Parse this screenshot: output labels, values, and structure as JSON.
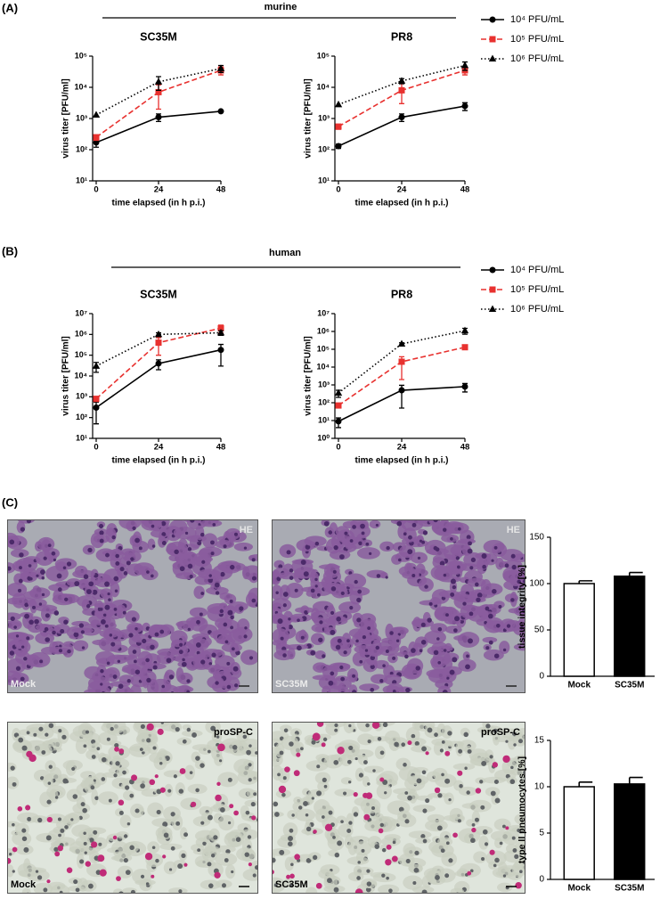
{
  "panels": [
    "(A)",
    "(B)",
    "(C)"
  ],
  "groups": [
    "murine",
    "human"
  ],
  "micrographs": [
    {
      "stain": "HE",
      "condition": "Mock"
    },
    {
      "stain": "HE",
      "condition": "SC35M"
    },
    {
      "stain": "proSP-C",
      "condition": "Mock"
    },
    {
      "stain": "proSP-C",
      "condition": "SC35M"
    }
  ],
  "chart_data": [
    {
      "type": "line",
      "title": "SC35M",
      "x_label": "time elapsed (in h p.i.)",
      "y_label": "virus titer [PFU/ml]",
      "x": [
        0,
        24,
        48
      ],
      "xlim": [
        0,
        48
      ],
      "xticks": [
        0,
        24,
        48
      ],
      "log_y": true,
      "ylim": [
        10,
        100000
      ],
      "yticks": [
        {
          "value": 10,
          "label": "10¹"
        },
        {
          "value": 100,
          "label": "10²"
        },
        {
          "value": 1000,
          "label": "10³"
        },
        {
          "value": 10000,
          "label": "10⁴"
        },
        {
          "value": 100000,
          "label": "10⁵"
        }
      ],
      "series": [
        {
          "name": "10⁴ PFU/mL",
          "color": "#000000",
          "dash": "solid",
          "marker": "circle",
          "values": [
            170,
            1100,
            1700
          ],
          "errors": [
            50,
            300,
            0
          ]
        },
        {
          "name": "10⁵ PFU/mL",
          "color": "#e8312f",
          "dash": "dashed",
          "marker": "square",
          "values": [
            250,
            7000,
            35000
          ],
          "errors": [
            50,
            5000,
            10000
          ]
        },
        {
          "name": "10⁶ PFU/mL",
          "color": "#000000",
          "dash": "dotted",
          "marker": "triangle",
          "values": [
            1300,
            15000,
            40000
          ],
          "errors": [
            0,
            7000,
            10000
          ]
        }
      ]
    },
    {
      "type": "line",
      "title": "PR8",
      "x_label": "time elapsed (in h p.i.)",
      "y_label": "virus titer [PFU/ml]",
      "x": [
        0,
        24,
        48
      ],
      "xlim": [
        0,
        48
      ],
      "xticks": [
        0,
        24,
        48
      ],
      "log_y": true,
      "ylim": [
        10,
        100000
      ],
      "yticks": [
        {
          "value": 10,
          "label": "10¹"
        },
        {
          "value": 100,
          "label": "10²"
        },
        {
          "value": 1000,
          "label": "10³"
        },
        {
          "value": 10000,
          "label": "10⁴"
        },
        {
          "value": 100000,
          "label": "10⁵"
        }
      ],
      "series": [
        {
          "name": "10⁴ PFU/mL",
          "color": "#000000",
          "dash": "solid",
          "marker": "circle",
          "values": [
            130,
            1100,
            2500
          ],
          "errors": [
            20,
            300,
            700
          ]
        },
        {
          "name": "10⁵ PFU/mL",
          "color": "#e8312f",
          "dash": "dashed",
          "marker": "square",
          "values": [
            550,
            8000,
            35000
          ],
          "errors": [
            100,
            5000,
            10000
          ]
        },
        {
          "name": "10⁶ PFU/mL",
          "color": "#000000",
          "dash": "dotted",
          "marker": "triangle",
          "values": [
            2800,
            16000,
            50000
          ],
          "errors": [
            0,
            3000,
            15000
          ]
        }
      ]
    },
    {
      "type": "line",
      "title": "SC35M",
      "x_label": "time elapsed (in h p.i.)",
      "y_label": "virus titer [PFU/ml]",
      "x": [
        0,
        24,
        48
      ],
      "xlim": [
        0,
        48
      ],
      "xticks": [
        0,
        24,
        48
      ],
      "log_y": true,
      "ylim": [
        10,
        10000000
      ],
      "yticks": [
        {
          "value": 10,
          "label": "10¹"
        },
        {
          "value": 100,
          "label": "10²"
        },
        {
          "value": 1000,
          "label": "10³"
        },
        {
          "value": 10000,
          "label": "10⁴"
        },
        {
          "value": 100000,
          "label": "10⁵"
        },
        {
          "value": 1000000,
          "label": "10⁶"
        },
        {
          "value": 10000000,
          "label": "10⁷"
        }
      ],
      "series": [
        {
          "name": "10⁴ PFU/mL",
          "color": "#000000",
          "dash": "solid",
          "marker": "circle",
          "values": [
            300,
            40000,
            180000
          ],
          "errors": [
            250,
            20000,
            150000
          ]
        },
        {
          "name": "10⁵ PFU/mL",
          "color": "#e8312f",
          "dash": "dashed",
          "marker": "square",
          "values": [
            800,
            400000,
            2000000
          ],
          "errors": [
            200,
            300000,
            800000
          ]
        },
        {
          "name": "10⁶ PFU/mL",
          "color": "#000000",
          "dash": "dotted",
          "marker": "triangle",
          "values": [
            30000,
            1000000,
            1200000
          ],
          "errors": [
            15000,
            200000,
            300000
          ]
        }
      ]
    },
    {
      "type": "line",
      "title": "PR8",
      "x_label": "time elapsed (in h p.i.)",
      "y_label": "virus titer [PFU/ml]",
      "x": [
        0,
        24,
        48
      ],
      "xlim": [
        0,
        48
      ],
      "xticks": [
        0,
        24,
        48
      ],
      "log_y": true,
      "ylim": [
        1,
        10000000
      ],
      "yticks": [
        {
          "value": 1,
          "label": "10⁰"
        },
        {
          "value": 10,
          "label": "10¹"
        },
        {
          "value": 100,
          "label": "10²"
        },
        {
          "value": 1000,
          "label": "10³"
        },
        {
          "value": 10000,
          "label": "10⁴"
        },
        {
          "value": 100000,
          "label": "10⁵"
        },
        {
          "value": 1000000,
          "label": "10⁶"
        },
        {
          "value": 10000000,
          "label": "10⁷"
        }
      ],
      "series": [
        {
          "name": "10⁴ PFU/mL",
          "color": "#000000",
          "dash": "solid",
          "marker": "circle",
          "values": [
            9,
            500,
            800
          ],
          "errors": [
            5,
            450,
            400
          ]
        },
        {
          "name": "10⁵ PFU/mL",
          "color": "#e8312f",
          "dash": "dashed",
          "marker": "square",
          "values": [
            70,
            20000,
            130000
          ],
          "errors": [
            10,
            18000,
            20000
          ]
        },
        {
          "name": "10⁶ PFU/mL",
          "color": "#000000",
          "dash": "dotted",
          "marker": "triangle",
          "values": [
            350,
            200000,
            1100000
          ],
          "errors": [
            150,
            30000,
            400000
          ]
        }
      ]
    },
    {
      "type": "bar",
      "y_label": "tissue integrity [%]",
      "categories": [
        "Mock",
        "SC35M"
      ],
      "values": [
        100,
        108
      ],
      "errors": [
        3,
        4
      ],
      "colors": [
        "#ffffff",
        "#000000"
      ],
      "ylim": [
        0,
        150
      ],
      "yticks": [
        0,
        50,
        100,
        150
      ]
    },
    {
      "type": "bar",
      "y_label": "type II pneumocytes [%]",
      "categories": [
        "Mock",
        "SC35M"
      ],
      "values": [
        10,
        10.3
      ],
      "errors": [
        0.5,
        0.7
      ],
      "colors": [
        "#ffffff",
        "#000000"
      ],
      "ylim": [
        0,
        15
      ],
      "yticks": [
        0,
        5,
        10,
        15
      ]
    }
  ]
}
